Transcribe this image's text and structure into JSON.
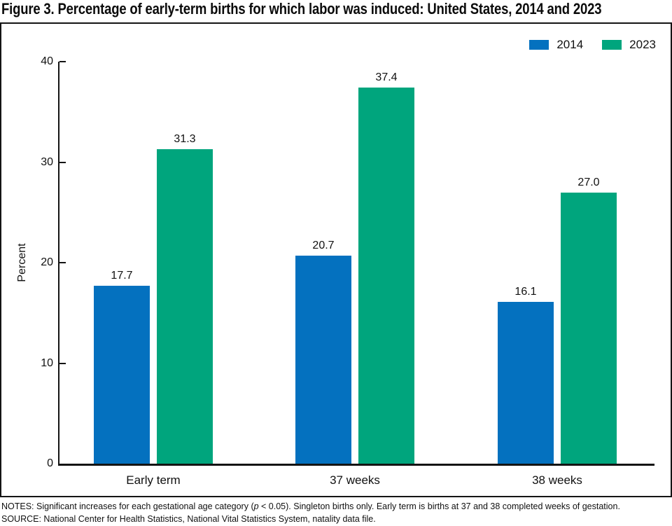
{
  "title": "Figure 3. Percentage of early-term births for which labor was induced: United States, 2014 and 2023",
  "chart_data": {
    "type": "bar",
    "categories": [
      "Early term",
      "37 weeks",
      "38 weeks"
    ],
    "series": [
      {
        "name": "2014",
        "color": "#0471bf",
        "values": [
          17.7,
          20.7,
          16.1
        ]
      },
      {
        "name": "2023",
        "color": "#00a57d",
        "values": [
          31.3,
          37.4,
          27.0
        ]
      }
    ],
    "ylabel": "Percent",
    "ylim": [
      0,
      40
    ],
    "yticks": [
      0,
      10,
      20,
      30,
      40
    ],
    "grid": false,
    "legend_position": "top-right",
    "bar_labels": true
  },
  "notes": {
    "line1_part1": "NOTES: Significant increases for each gestational age category (",
    "line1_italic": "p",
    "line1_part2": " < 0.05). Singleton births only. Early term is births at 37 and 38 completed weeks of gestation.",
    "line2": "SOURCE: National Center for Health Statistics, National Vital Statistics System, natality data file."
  }
}
